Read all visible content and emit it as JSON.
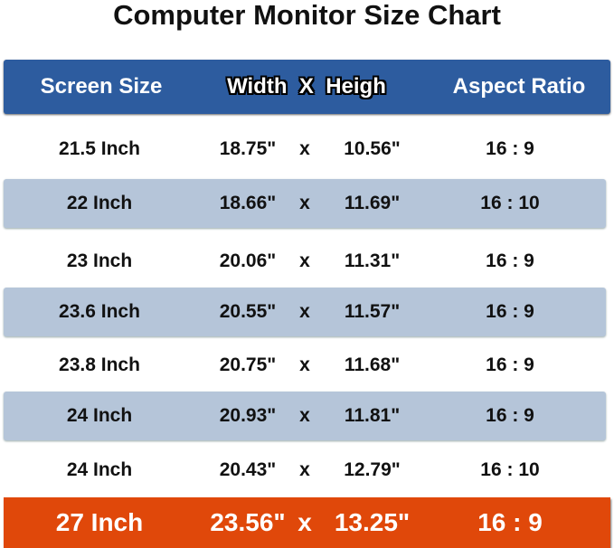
{
  "title": "Computer Monitor Size Chart",
  "headers": {
    "size": "Screen Size",
    "dims": "Width  X  Heigh",
    "ratio": "Aspect Ratio"
  },
  "colors": {
    "header": "#2d5c9f",
    "shade": "#b5c5d9",
    "highlight": "#e0480a"
  },
  "rows": [
    {
      "size": "21.5 Inch",
      "width": "18.75\"",
      "x": "x",
      "height": "10.56\"",
      "ratio": "16 : 9"
    },
    {
      "size": "22 Inch",
      "width": "18.66\"",
      "x": "x",
      "height": "11.69\"",
      "ratio": "16 : 10"
    },
    {
      "size": "23 Inch",
      "width": "20.06\"",
      "x": "x",
      "height": "11.31\"",
      "ratio": "16 : 9"
    },
    {
      "size": "23.6 Inch",
      "width": "20.55\"",
      "x": "x",
      "height": "11.57\"",
      "ratio": "16 : 9"
    },
    {
      "size": "23.8 Inch",
      "width": "20.75\"",
      "x": "x",
      "height": "11.68\"",
      "ratio": "16 : 9"
    },
    {
      "size": "24 Inch",
      "width": "20.93\"",
      "x": "x",
      "height": "11.81\"",
      "ratio": "16 : 9"
    },
    {
      "size": "24 Inch",
      "width": "20.43\"",
      "x": "x",
      "height": "12.79\"",
      "ratio": "16 : 10"
    },
    {
      "size": "27 Inch",
      "width": "23.56\"",
      "x": "x",
      "height": "13.25\"",
      "ratio": "16 : 9"
    }
  ]
}
